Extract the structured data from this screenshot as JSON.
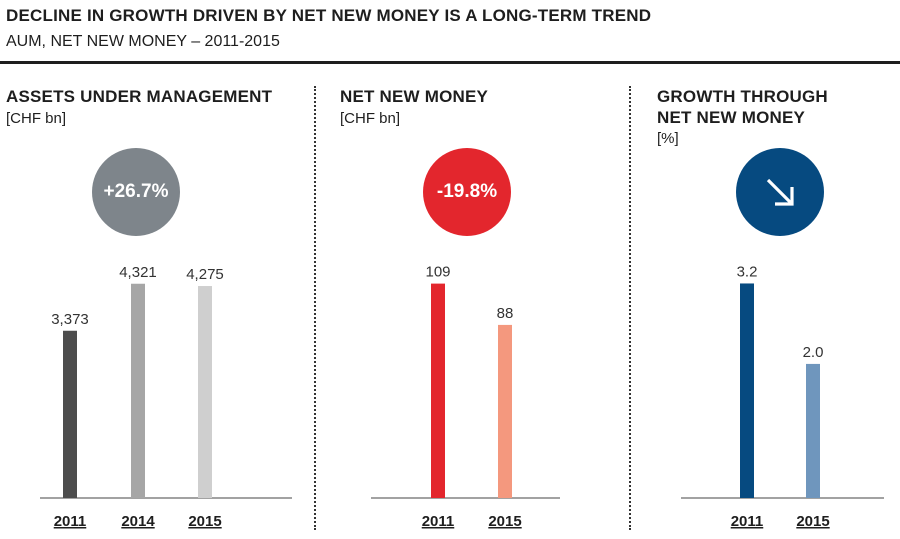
{
  "header": {
    "title": "DECLINE IN GROWTH DRIVEN BY NET NEW MONEY IS A LONG-TERM TREND",
    "subtitle": "AUM, NET NEW MONEY – 2011-2015"
  },
  "panels": [
    {
      "title_line1": "ASSETS UNDER MANAGEMENT",
      "title_line2": "",
      "unit": "[CHF bn]",
      "badge": "+26.7%",
      "badge_color": "#7e858b"
    },
    {
      "title_line1": "NET NEW MONEY",
      "title_line2": "",
      "unit": "[CHF bn]",
      "badge": "-19.8%",
      "badge_color": "#e3262d"
    },
    {
      "title_line1": "GROWTH THROUGH",
      "title_line2": "NET NEW MONEY",
      "unit": "[%]",
      "badge": "",
      "badge_icon": "arrow-down-right-icon",
      "badge_color": "#064a80"
    }
  ],
  "chart_data": [
    {
      "type": "bar",
      "title": "ASSETS UNDER MANAGEMENT",
      "ylabel": "[CHF bn]",
      "categories": [
        "2011",
        "2014",
        "2015"
      ],
      "values": [
        3373,
        4321,
        4275
      ],
      "labels": [
        "3,373",
        "4,321",
        "4,275"
      ],
      "colors": [
        "#4d4d4d",
        "#a6a6a6",
        "#cfcfcf"
      ],
      "ylim": [
        0,
        4800
      ]
    },
    {
      "type": "bar",
      "title": "NET NEW MONEY",
      "ylabel": "[CHF bn]",
      "categories": [
        "2011",
        "2015"
      ],
      "values": [
        109,
        88
      ],
      "labels": [
        "109",
        "88"
      ],
      "colors": [
        "#e3262d",
        "#f4987e"
      ],
      "ylim": [
        0,
        121
      ]
    },
    {
      "type": "bar",
      "title": "GROWTH THROUGH NET NEW MONEY",
      "ylabel": "[%]",
      "categories": [
        "2011",
        "2015"
      ],
      "values": [
        3.2,
        2.0
      ],
      "labels": [
        "3.2",
        "2.0"
      ],
      "colors": [
        "#064a80",
        "#6f96bd"
      ],
      "ylim": [
        0,
        3.55
      ]
    }
  ]
}
